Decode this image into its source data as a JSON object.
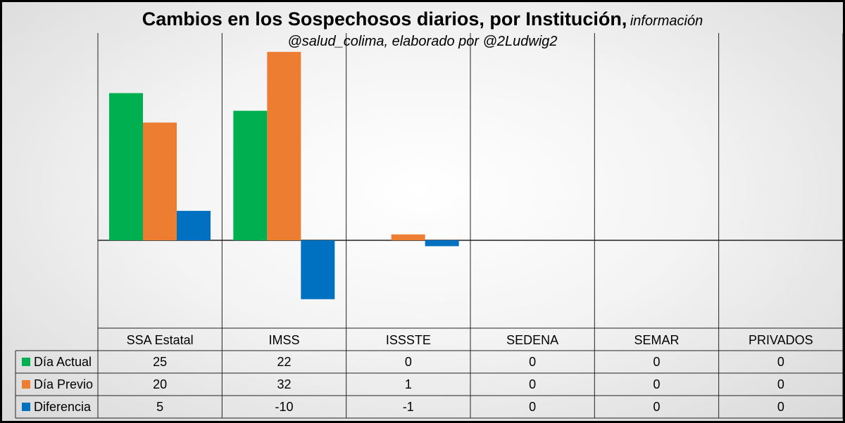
{
  "chart_data": {
    "type": "bar",
    "title": "Cambios en los Sospechosos diarios, por Institución,",
    "subtitle_part1": "información",
    "subtitle_part2": "@salud_colima, elaborado por @2Ludwig2",
    "categories": [
      "SSA Estatal",
      "IMSS",
      "ISSSTE",
      "SEDENA",
      "SEMAR",
      "PRIVADOS"
    ],
    "series": [
      {
        "name": "Día Actual",
        "color": "#00b050",
        "values": [
          25,
          22,
          0,
          0,
          0,
          0
        ]
      },
      {
        "name": "Día Previo",
        "color": "#ed7d31",
        "values": [
          20,
          32,
          1,
          0,
          0,
          0
        ]
      },
      {
        "name": "Diferencia",
        "color": "#0070c0",
        "values": [
          5,
          -10,
          -1,
          0,
          0,
          0
        ]
      }
    ],
    "ylim": [
      -15,
      33
    ],
    "legend": "data-table"
  }
}
